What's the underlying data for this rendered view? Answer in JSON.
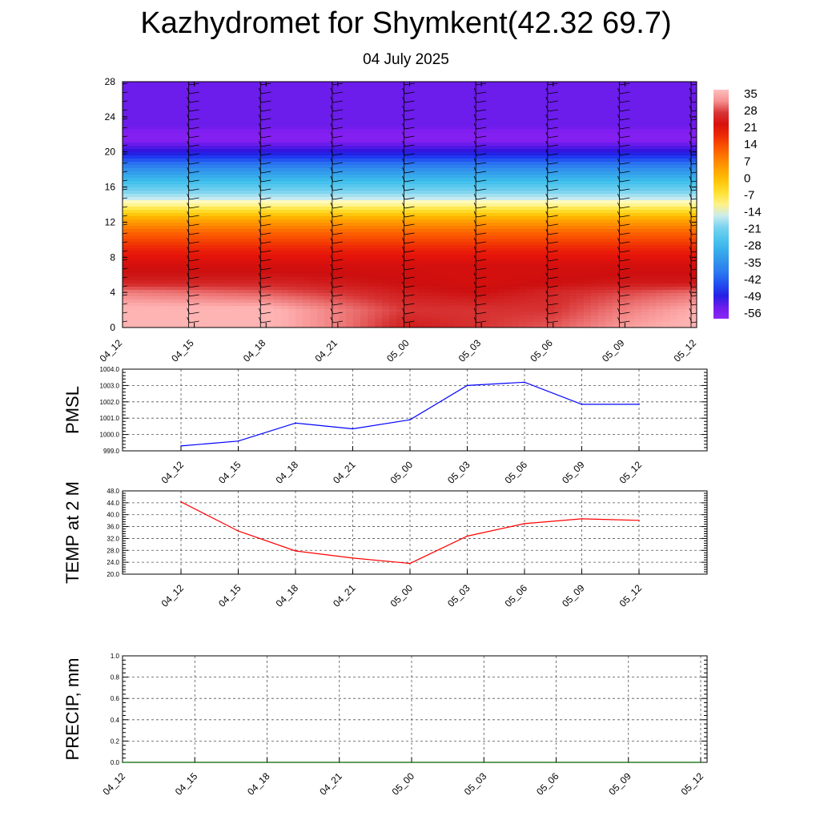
{
  "header": {
    "title": "Kazhydromet for Shymkent(42.32 69.7)",
    "subtitle": "04 July 2025"
  },
  "chart_data": [
    {
      "type": "heatmap",
      "title": "",
      "xlabel": "",
      "ylabel": "",
      "x_ticks": [
        "04_12",
        "04_15",
        "04_18",
        "04_21",
        "05_00",
        "05_03",
        "05_06",
        "05_09",
        "05_12"
      ],
      "y_ticks": [
        0,
        4,
        8,
        12,
        16,
        20,
        24,
        28
      ],
      "ylim": [
        0,
        28
      ],
      "colorbar_labels": [
        "35",
        "28",
        "21",
        "14",
        "7",
        "0",
        "-7",
        "-14",
        "-21",
        "-28",
        "-35",
        "-42",
        "-49",
        "-56"
      ],
      "colorbar_range": [
        -60,
        38
      ],
      "wind_barbs": true,
      "temperature_profile": [
        {
          "height": 0,
          "values": [
            36,
            36,
            36,
            32,
            26,
            28,
            30,
            34,
            36
          ]
        },
        {
          "height": 2,
          "values": [
            36,
            36,
            36,
            32,
            28,
            28,
            28,
            32,
            35
          ]
        },
        {
          "height": 4,
          "values": [
            32,
            31,
            30,
            28,
            26,
            25,
            27,
            29,
            31
          ]
        },
        {
          "height": 5,
          "values": [
            27,
            27,
            27,
            26,
            25,
            24,
            25,
            26,
            26
          ]
        },
        {
          "height": 7,
          "values": [
            24,
            24,
            24,
            24,
            24,
            24,
            24,
            24,
            24
          ]
        },
        {
          "height": 9,
          "values": [
            19,
            19,
            19,
            19,
            19,
            19,
            19,
            19,
            19
          ]
        },
        {
          "height": 11,
          "values": [
            11,
            11,
            11,
            11,
            11,
            11,
            11,
            11,
            11
          ]
        },
        {
          "height": 12.5,
          "values": [
            2,
            2,
            2,
            2,
            2,
            2,
            2,
            2,
            2
          ]
        },
        {
          "height": 14,
          "values": [
            -12,
            -12,
            -12,
            -12,
            -12,
            -12,
            -12,
            -12,
            -12
          ]
        },
        {
          "height": 16,
          "values": [
            -24,
            -24,
            -24,
            -24,
            -24,
            -24,
            -24,
            -24,
            -24
          ]
        },
        {
          "height": 18,
          "values": [
            -36,
            -36,
            -36,
            -36,
            -36,
            -36,
            -36,
            -36,
            -36
          ]
        },
        {
          "height": 20,
          "values": [
            -52,
            -52,
            -52,
            -52,
            -52,
            -52,
            -52,
            -52,
            -52
          ]
        },
        {
          "height": 21.5,
          "values": [
            -57,
            -57,
            -57,
            -57,
            -57,
            -57,
            -57,
            -57,
            -57
          ]
        },
        {
          "height": 23,
          "values": [
            -55,
            -55,
            -55,
            -55,
            -55,
            -55,
            -55,
            -55,
            -55
          ]
        },
        {
          "height": 28,
          "values": [
            -55,
            -55,
            -55,
            -55,
            -55,
            -55,
            -55,
            -55,
            -55
          ]
        }
      ]
    },
    {
      "type": "line",
      "ylabel": "PMSL",
      "categories": [
        "04_12",
        "04_15",
        "04_18",
        "04_21",
        "05_00",
        "05_03",
        "05_06",
        "05_09",
        "05_12"
      ],
      "series": [
        {
          "values": [
            999.3,
            999.6,
            1000.7,
            1000.35,
            1000.9,
            1003.0,
            1003.2,
            1001.85,
            1001.85
          ],
          "color": "#0000ff"
        }
      ],
      "ylim": [
        999.0,
        1004.0
      ],
      "y_ticks": [
        "999.0",
        "1000.0",
        "1001.0",
        "1002.0",
        "1003.0",
        "1004.0"
      ],
      "grid": true
    },
    {
      "type": "line",
      "ylabel": "TEMP at 2 M",
      "categories": [
        "04_12",
        "04_15",
        "04_18",
        "04_21",
        "05_00",
        "05_03",
        "05_06",
        "05_09",
        "05_12"
      ],
      "series": [
        {
          "values": [
            44.3,
            34.5,
            27.8,
            25.4,
            23.6,
            32.8,
            37.0,
            38.6,
            38.1
          ],
          "color": "#ff0000"
        }
      ],
      "ylim": [
        20.0,
        48.0
      ],
      "y_ticks": [
        "20.0",
        "24.0",
        "28.0",
        "32.0",
        "36.0",
        "40.0",
        "44.0",
        "48.0"
      ],
      "grid": true
    },
    {
      "type": "line",
      "ylabel": "PRECIP, mm",
      "categories": [
        "04_12",
        "04_15",
        "04_18",
        "04_21",
        "05_00",
        "05_03",
        "05_06",
        "05_09",
        "05_12"
      ],
      "series": [
        {
          "values": [
            0,
            0,
            0,
            0,
            0,
            0,
            0,
            0,
            0
          ],
          "color": "#006400"
        }
      ],
      "ylim": [
        0.0,
        1.0
      ],
      "y_ticks": [
        "0.0",
        "0.2",
        "0.4",
        "0.6",
        "0.8",
        "1.0"
      ],
      "grid": true
    }
  ]
}
